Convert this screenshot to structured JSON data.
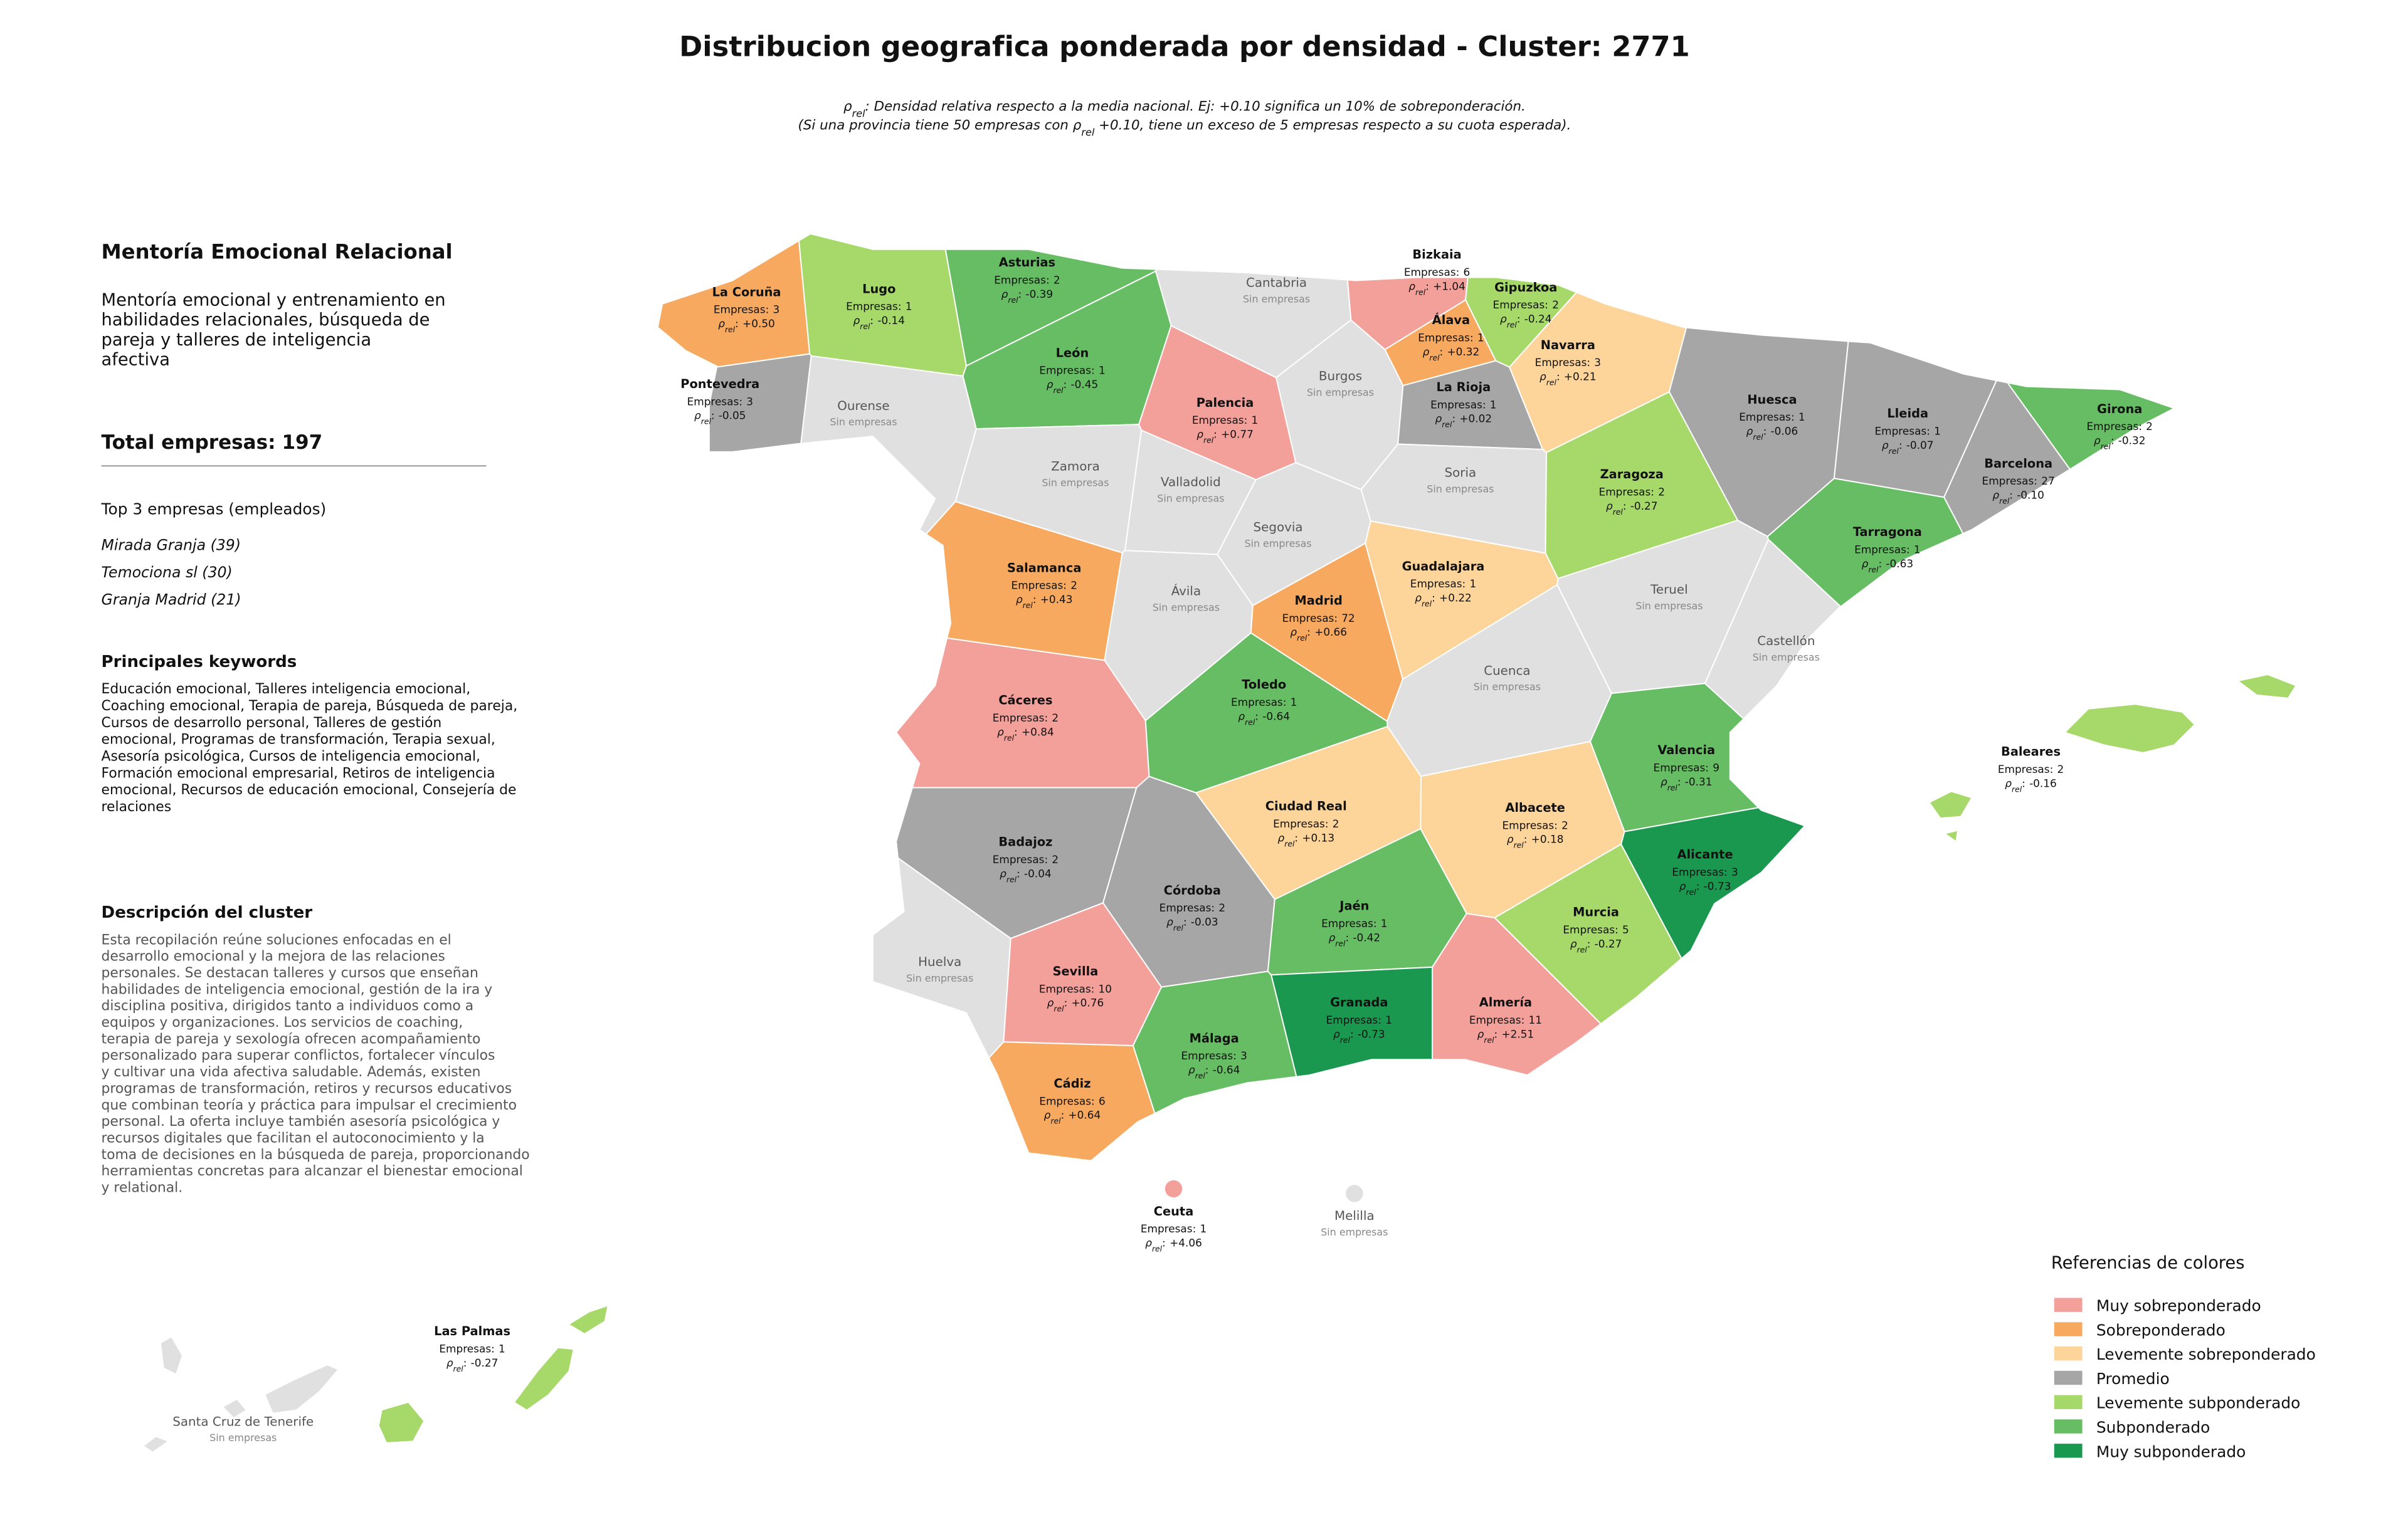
{
  "header": {
    "title": "Distribucion geografica ponderada por densidad - Cluster: 2771",
    "note_lines": [
      {
        "pre": "ρ",
        "sub": "rel",
        "post": ": Densidad relativa respecto a la media nacional. Ej: +0.10 significa un 10% de sobreponderación."
      },
      {
        "pre": "(Si una provincia tiene 50 empresas con ρ",
        "sub": "rel",
        "post": " +0.10, tiene un exceso de 5 empresas respecto a su cuota esperada)."
      }
    ]
  },
  "sidebar": {
    "cluster_name": "Mentoría Emocional Relacional",
    "summary_lines": [
      "Mentoría emocional y entrenamiento en",
      "habilidades relacionales, búsqueda de",
      "pareja y talleres de inteligencia",
      "afectiva"
    ],
    "total_label": "Total empresas:",
    "total": 197,
    "top_title": "Top 3 empresas (empleados)",
    "top_companies": [
      "Mirada Granja (39)",
      "Temociona sl (30)",
      "Granja Madrid (21)"
    ],
    "keywords_title": "Principales keywords",
    "keywords_lines": [
      "Educación emocional, Talleres inteligencia emocional,",
      "Coaching emocional, Terapia de pareja, Búsqueda de pareja,",
      "Cursos de desarrollo personal, Talleres de gestión",
      "emocional, Programas de transformación, Terapia sexual,",
      "Asesoría psicológica, Cursos de inteligencia emocional,",
      "Formación emocional empresarial, Retiros de inteligencia",
      "emocional, Recursos de educación emocional, Consejería de",
      "relaciones"
    ],
    "description_title": "Descripción del cluster",
    "description_lines": [
      "Esta recopilación reúne soluciones enfocadas en el",
      "desarrollo emocional y la mejora de las relaciones",
      "personales. Se destacan talleres y cursos que enseñan",
      "habilidades de inteligencia emocional, gestión de la ira y",
      "disciplina positiva, dirigidos tanto a individuos como a",
      "equipos y organizaciones. Los servicios de coaching,",
      "terapia de pareja y sexología ofrecen acompañamiento",
      "personalizado para superar conflictos, fortalecer vínculos",
      "y cultivar una vida afectiva saludable. Además, existen",
      "programas de transformación, retiros y recursos educativos",
      "que combinan teoría y práctica para impulsar el crecimiento",
      "personal. La oferta incluye también asesoría psicológica y",
      "recursos digitales que facilitan el autoconocimiento y la",
      "toma de decisiones en la búsqueda de pareja, proporcionando",
      "herramientas concretas para alcanzar el bienestar emocional",
      "y relational."
    ]
  },
  "map": {
    "companies_label": "Empresas:",
    "no_companies_label": "Sin empresas",
    "rho_symbol": "ρ",
    "rho_subscript": "rel",
    "rho_separator": ":",
    "no_data_color": "#e0e0e0",
    "provinces": [
      {
        "name": "La Coruña",
        "companies": 3,
        "rho": 0.5,
        "rho_label": "+0.50",
        "color": "#f7a95f"
      },
      {
        "name": "Lugo",
        "companies": 1,
        "rho": -0.14,
        "rho_label": "-0.14",
        "color": "#a6d96a"
      },
      {
        "name": "Asturias",
        "companies": 2,
        "rho": -0.39,
        "rho_label": "-0.39",
        "color": "#66bd63"
      },
      {
        "name": "Cantabria"
      },
      {
        "name": "Bizkaia",
        "companies": 6,
        "rho": 1.04,
        "rho_label": "+1.04",
        "color": "#f4a09a"
      },
      {
        "name": "Gipuzkoa",
        "companies": 2,
        "rho": -0.24,
        "rho_label": "-0.24",
        "color": "#a6d96a"
      },
      {
        "name": "Pontevedra",
        "companies": 3,
        "rho": -0.05,
        "rho_label": "-0.05",
        "color": "#a6a6a6"
      },
      {
        "name": "Ourense"
      },
      {
        "name": "León",
        "companies": 1,
        "rho": -0.45,
        "rho_label": "-0.45",
        "color": "#66bd63"
      },
      {
        "name": "Palencia",
        "companies": 1,
        "rho": 0.77,
        "rho_label": "+0.77",
        "color": "#f4a09a"
      },
      {
        "name": "Burgos"
      },
      {
        "name": "Álava",
        "companies": 1,
        "rho": 0.32,
        "rho_label": "+0.32",
        "color": "#f7a95f"
      },
      {
        "name": "La Rioja",
        "companies": 1,
        "rho": 0.02,
        "rho_label": "+0.02",
        "color": "#a6a6a6"
      },
      {
        "name": "Navarra",
        "companies": 3,
        "rho": 0.21,
        "rho_label": "+0.21",
        "color": "#fdd49a"
      },
      {
        "name": "Huesca",
        "companies": 1,
        "rho": -0.06,
        "rho_label": "-0.06",
        "color": "#a6a6a6"
      },
      {
        "name": "Lleida",
        "companies": 1,
        "rho": -0.07,
        "rho_label": "-0.07",
        "color": "#a6a6a6"
      },
      {
        "name": "Girona",
        "companies": 2,
        "rho": -0.32,
        "rho_label": "-0.32",
        "color": "#66bd63"
      },
      {
        "name": "Barcelona",
        "companies": 27,
        "rho": -0.1,
        "rho_label": "-0.10",
        "color": "#a6a6a6"
      },
      {
        "name": "Zamora"
      },
      {
        "name": "Valladolid"
      },
      {
        "name": "Soria"
      },
      {
        "name": "Zaragoza",
        "companies": 2,
        "rho": -0.27,
        "rho_label": "-0.27",
        "color": "#a6d96a"
      },
      {
        "name": "Segovia"
      },
      {
        "name": "Salamanca",
        "companies": 2,
        "rho": 0.43,
        "rho_label": "+0.43",
        "color": "#f7a95f"
      },
      {
        "name": "Guadalajara",
        "companies": 1,
        "rho": 0.22,
        "rho_label": "+0.22",
        "color": "#fdd49a"
      },
      {
        "name": "Tarragona",
        "companies": 1,
        "rho": -0.63,
        "rho_label": "-0.63",
        "color": "#66bd63"
      },
      {
        "name": "Ávila"
      },
      {
        "name": "Madrid",
        "companies": 72,
        "rho": 0.66,
        "rho_label": "+0.66",
        "color": "#f7a95f"
      },
      {
        "name": "Teruel"
      },
      {
        "name": "Castellón"
      },
      {
        "name": "Cuenca"
      },
      {
        "name": "Cáceres",
        "companies": 2,
        "rho": 0.84,
        "rho_label": "+0.84",
        "color": "#f4a09a"
      },
      {
        "name": "Toledo",
        "companies": 1,
        "rho": -0.64,
        "rho_label": "-0.64",
        "color": "#66bd63"
      },
      {
        "name": "Valencia",
        "companies": 9,
        "rho": -0.31,
        "rho_label": "-0.31",
        "color": "#66bd63"
      },
      {
        "name": "Ciudad Real",
        "companies": 2,
        "rho": 0.13,
        "rho_label": "+0.13",
        "color": "#fdd49a"
      },
      {
        "name": "Albacete",
        "companies": 2,
        "rho": 0.18,
        "rho_label": "+0.18",
        "color": "#fdd49a"
      },
      {
        "name": "Badajoz",
        "companies": 2,
        "rho": -0.04,
        "rho_label": "-0.04",
        "color": "#a6a6a6"
      },
      {
        "name": "Alicante",
        "companies": 3,
        "rho": -0.73,
        "rho_label": "-0.73",
        "color": "#1a9850"
      },
      {
        "name": "Córdoba",
        "companies": 2,
        "rho": -0.03,
        "rho_label": "-0.03",
        "color": "#a6a6a6"
      },
      {
        "name": "Jaén",
        "companies": 1,
        "rho": -0.42,
        "rho_label": "-0.42",
        "color": "#66bd63"
      },
      {
        "name": "Murcia",
        "companies": 5,
        "rho": -0.27,
        "rho_label": "-0.27",
        "color": "#a6d96a"
      },
      {
        "name": "Huelva"
      },
      {
        "name": "Sevilla",
        "companies": 10,
        "rho": 0.76,
        "rho_label": "+0.76",
        "color": "#f4a09a"
      },
      {
        "name": "Granada",
        "companies": 1,
        "rho": -0.73,
        "rho_label": "-0.73",
        "color": "#1a9850"
      },
      {
        "name": "Almería",
        "companies": 11,
        "rho": 2.51,
        "rho_label": "+2.51",
        "color": "#f4a09a"
      },
      {
        "name": "Málaga",
        "companies": 3,
        "rho": -0.64,
        "rho_label": "-0.64",
        "color": "#66bd63"
      },
      {
        "name": "Cádiz",
        "companies": 6,
        "rho": 0.64,
        "rho_label": "+0.64",
        "color": "#f7a95f"
      },
      {
        "name": "Baleares",
        "companies": 2,
        "rho": -0.16,
        "rho_label": "-0.16",
        "color": "#a6d96a"
      },
      {
        "name": "Ceuta",
        "companies": 1,
        "rho": 4.06,
        "rho_label": "+4.06",
        "color": "#f4a09a"
      },
      {
        "name": "Melilla"
      },
      {
        "name": "Las Palmas",
        "companies": 1,
        "rho": -0.27,
        "rho_label": "-0.27",
        "color": "#a6d96a"
      },
      {
        "name": "Santa Cruz de Tenerife"
      }
    ]
  },
  "legend": {
    "title": "Referencias de colores",
    "items": [
      {
        "label": "Muy sobreponderado",
        "color": "#f4a09a"
      },
      {
        "label": "Sobreponderado",
        "color": "#f7a95f"
      },
      {
        "label": "Levemente sobreponderado",
        "color": "#fdd49a"
      },
      {
        "label": "Promedio",
        "color": "#a6a6a6"
      },
      {
        "label": "Levemente subponderado",
        "color": "#a6d96a"
      },
      {
        "label": "Subponderado",
        "color": "#66bd63"
      },
      {
        "label": "Muy subponderado",
        "color": "#1a9850"
      }
    ]
  }
}
